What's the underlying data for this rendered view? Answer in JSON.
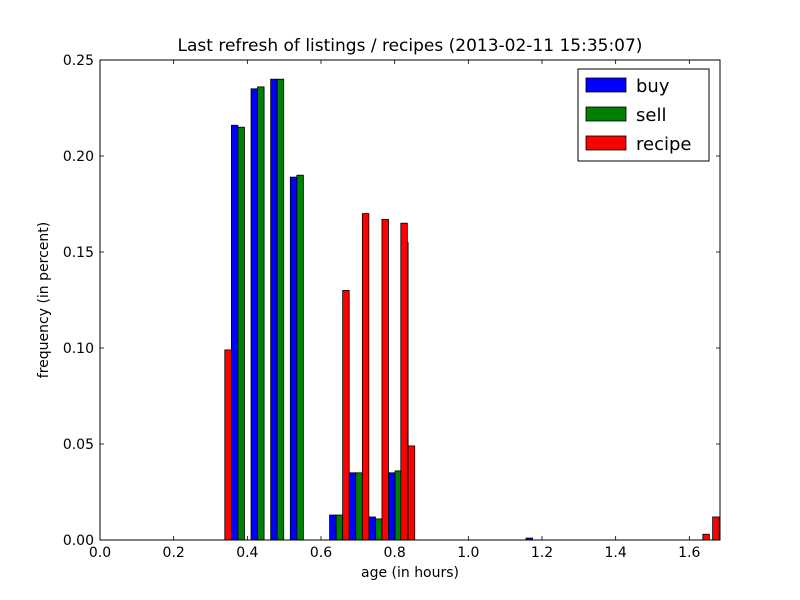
{
  "chart_data": {
    "type": "bar",
    "title": "Last refresh of listings / recipes (2013-02-11 15:35:07)",
    "xlabel": "age (in hours)",
    "ylabel": "frequency (in percent)",
    "xlim": [
      0.0,
      1.6833
    ],
    "ylim": [
      0.0,
      0.25
    ],
    "xticks": [
      "0.0",
      "0.2",
      "0.4",
      "0.6",
      "0.8",
      "1.0",
      "1.2",
      "1.4",
      "1.6"
    ],
    "yticks": [
      "0.00",
      "0.05",
      "0.10",
      "0.15",
      "0.20",
      "0.25"
    ],
    "bin_width": 0.0533,
    "grid": false,
    "legend_position": "top-right",
    "bins": [
      0.3033,
      0.3567,
      0.41,
      0.4633,
      0.5167,
      0.57,
      0.6233,
      0.6767,
      0.73,
      0.7833,
      1.1567,
      1.6367
    ],
    "series": [
      {
        "name": "buy",
        "color": "#0000ff",
        "values": [
          0.0,
          0.216,
          0.235,
          0.24,
          0.189,
          0.0,
          0.013,
          0.035,
          0.012,
          0.035,
          0.001,
          0.0
        ]
      },
      {
        "name": "sell",
        "color": "#008000",
        "values": [
          0.0,
          0.215,
          0.236,
          0.24,
          0.19,
          0.0,
          0.013,
          0.035,
          0.011,
          0.036,
          0.0,
          0.0
        ]
      },
      {
        "name": "recipe",
        "color": "#ff0000",
        "values": [
          0.099,
          0.0,
          0.0,
          0.0,
          0.0,
          0.0,
          0.13,
          0.17,
          0.167,
          0.155,
          0.0,
          0.0
        ]
      }
    ],
    "extra_recipe_bars": [
      {
        "x": 0.7833,
        "note": "",
        "values": []
      }
    ],
    "recipe_additional": [
      {
        "bin_start": 0.8167,
        "value": 0.165
      },
      {
        "bin_start": 0.8367,
        "value": 0.049
      },
      {
        "bin_start": 1.6367,
        "value": 0.003
      },
      {
        "bin_start": 1.6633,
        "value": 0.012
      }
    ]
  }
}
